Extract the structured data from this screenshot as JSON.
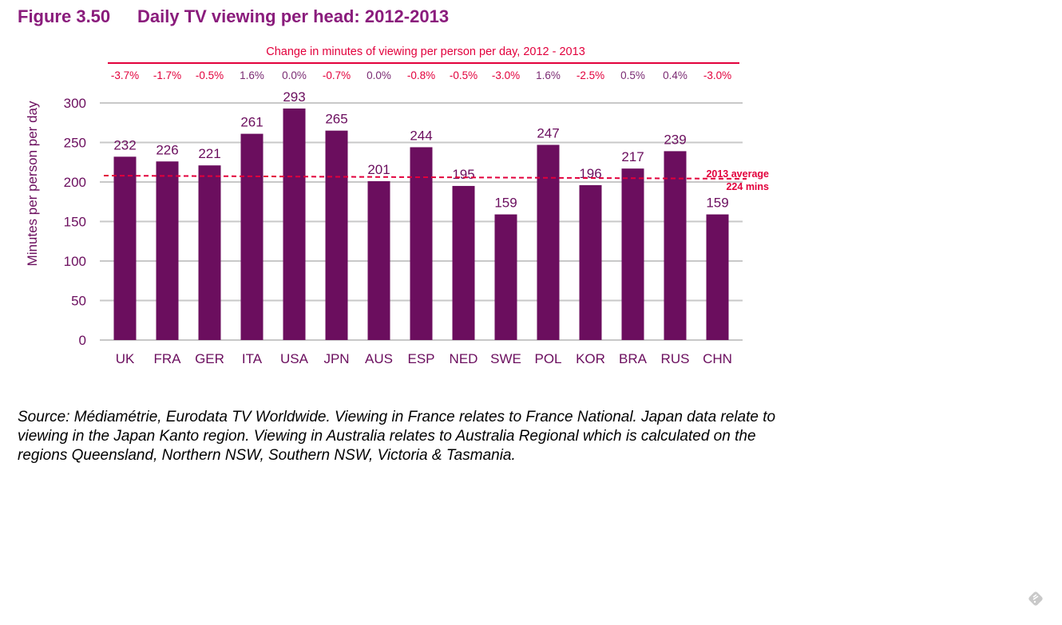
{
  "figure": {
    "number": "Figure 3.50",
    "title": "Daily TV viewing per head: 2012-2013"
  },
  "chart_data": {
    "type": "bar",
    "title": "Daily TV viewing per head: 2012-2013",
    "xlabel": "",
    "ylabel": "Minutes per person per day",
    "ylim": [
      0,
      300
    ],
    "yticks": [
      0,
      50,
      100,
      150,
      200,
      250,
      300
    ],
    "grid": true,
    "categories": [
      "UK",
      "FRA",
      "GER",
      "ITA",
      "USA",
      "JPN",
      "AUS",
      "ESP",
      "NED",
      "SWE",
      "POL",
      "KOR",
      "BRA",
      "RUS",
      "CHN"
    ],
    "values": [
      232,
      226,
      221,
      261,
      293,
      265,
      201,
      244,
      195,
      159,
      247,
      196,
      217,
      239,
      159
    ],
    "change_header": "Change in minutes of viewing per person per day, 2012 - 2013",
    "changes": [
      "-3.7%",
      "-1.7%",
      "-0.5%",
      "1.6%",
      "0.0%",
      "-0.7%",
      "0.0%",
      "-0.8%",
      "-0.5%",
      "-3.0%",
      "1.6%",
      "-2.5%",
      "0.5%",
      "0.4%",
      "-3.0%"
    ],
    "average": {
      "value": 224,
      "label_line1": "2013 average",
      "label_line2": "224 mins"
    },
    "colors": {
      "bar": "#6b0e5e",
      "text": "#6b0e5e",
      "negative": "#e2003c",
      "positive": "#7a2a72",
      "grid": "#c8c8c8",
      "average": "#e2003c"
    }
  },
  "source_note": "Source: Médiamétrie, Eurodata TV Worldwide. Viewing in France relates to France National. Japan data relate to viewing in the Japan Kanto region. Viewing in Australia relates to Australia Regional which is calculated on the regions Queensland, Northern NSW, Southern NSW, Victoria & Tasmania.",
  "corner_icon": "feedback-icon"
}
